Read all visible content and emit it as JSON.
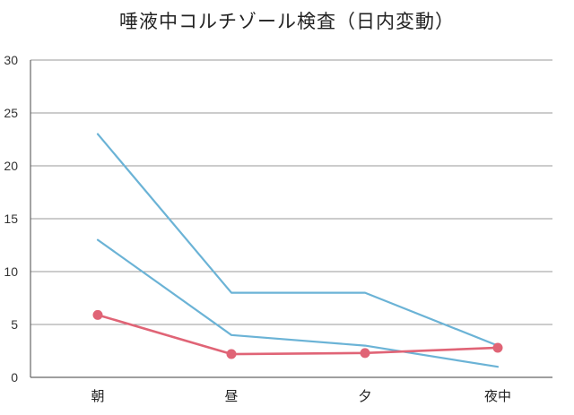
{
  "chart_data": {
    "type": "line",
    "title": "唾液中コルチゾール検査（日内変動）",
    "categories": [
      "朝",
      "昼",
      "夕",
      "夜中"
    ],
    "ylim": [
      0,
      30
    ],
    "yticks": [
      "0",
      "5",
      "10",
      "15",
      "20",
      "25",
      "30"
    ],
    "grid": true,
    "series": [
      {
        "values": [
          23,
          8,
          8,
          3
        ],
        "color": "#6bb3d6",
        "markers": false
      },
      {
        "values": [
          13,
          4,
          3,
          1
        ],
        "color": "#6bb3d6",
        "markers": false
      },
      {
        "values": [
          5.9,
          2.2,
          2.3,
          2.8
        ],
        "color": "#e06476",
        "markers": true
      }
    ]
  }
}
